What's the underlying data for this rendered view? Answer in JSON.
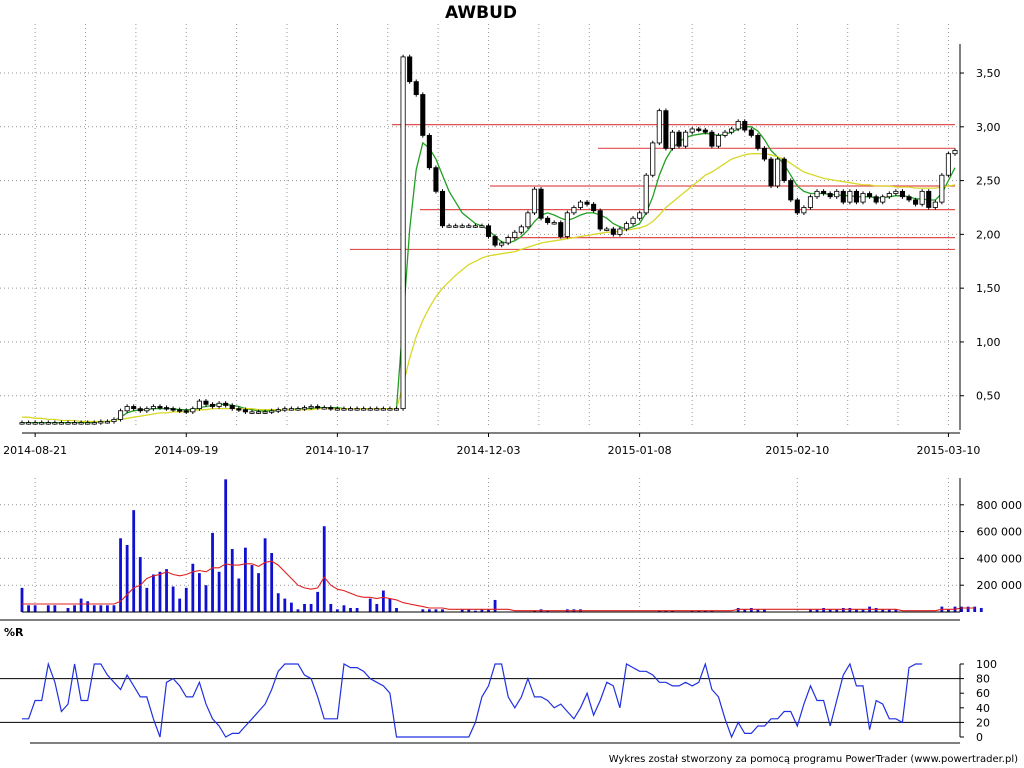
{
  "chart_data": [
    {
      "type": "candlestick",
      "title": "AWBUD",
      "x_tick_labels": [
        "2014-08-21",
        "2014-09-19",
        "2014-10-17",
        "2014-12-03",
        "2015-01-08",
        "2015-02-10",
        "2015-03-10"
      ],
      "y_tick_labels": [
        "0,50",
        "1,00",
        "1,50",
        "2,00",
        "2,50",
        "3,00",
        "3,50"
      ],
      "y_ticks": [
        0.5,
        1.0,
        1.5,
        2.0,
        2.5,
        3.0,
        3.5
      ],
      "ylim": [
        0.2,
        3.9
      ],
      "grid": true,
      "closes": [
        0.25,
        0.25,
        0.25,
        0.25,
        0.25,
        0.25,
        0.25,
        0.25,
        0.25,
        0.25,
        0.25,
        0.25,
        0.26,
        0.26,
        0.28,
        0.36,
        0.4,
        0.38,
        0.36,
        0.38,
        0.4,
        0.39,
        0.38,
        0.37,
        0.36,
        0.35,
        0.38,
        0.45,
        0.42,
        0.4,
        0.43,
        0.41,
        0.38,
        0.37,
        0.35,
        0.35,
        0.35,
        0.35,
        0.36,
        0.37,
        0.38,
        0.38,
        0.38,
        0.39,
        0.4,
        0.39,
        0.39,
        0.38,
        0.38,
        0.38,
        0.38,
        0.38,
        0.38,
        0.38,
        0.38,
        0.38,
        0.38,
        0.38,
        3.65,
        3.42,
        3.3,
        2.92,
        2.62,
        2.4,
        2.08,
        2.08,
        2.08,
        2.08,
        2.08,
        2.08,
        2.08,
        1.98,
        1.9,
        1.92,
        1.97,
        2.02,
        2.07,
        2.2,
        2.42,
        2.15,
        2.11,
        2.11,
        1.98,
        2.2,
        2.25,
        2.3,
        2.28,
        2.22,
        2.05,
        2.05,
        2.0,
        2.05,
        2.1,
        2.15,
        2.2,
        2.55,
        2.85,
        3.15,
        2.8,
        2.95,
        2.82,
        2.95,
        2.98,
        2.97,
        2.95,
        2.82,
        2.92,
        2.95,
        2.98,
        3.05,
        2.97,
        2.92,
        2.8,
        2.7,
        2.45,
        2.7,
        2.5,
        2.32,
        2.2,
        2.25,
        2.35,
        2.4,
        2.38,
        2.35,
        2.4,
        2.3,
        2.4,
        2.3,
        2.38,
        2.35,
        2.3,
        2.35,
        2.38,
        2.4,
        2.35,
        2.32,
        2.28,
        2.4,
        2.25,
        2.3,
        2.55,
        2.75,
        2.78
      ],
      "series": [
        {
          "kind": "sma_short",
          "color": "#22a022",
          "values": [
            0.25,
            0.25,
            0.25,
            0.25,
            0.25,
            0.25,
            0.25,
            0.25,
            0.25,
            0.25,
            0.25,
            0.25,
            0.26,
            0.26,
            0.27,
            0.3,
            0.34,
            0.36,
            0.37,
            0.37,
            0.38,
            0.38,
            0.38,
            0.38,
            0.37,
            0.37,
            0.37,
            0.39,
            0.4,
            0.41,
            0.42,
            0.42,
            0.41,
            0.4,
            0.38,
            0.37,
            0.36,
            0.36,
            0.36,
            0.36,
            0.37,
            0.37,
            0.38,
            0.38,
            0.38,
            0.39,
            0.39,
            0.39,
            0.39,
            0.38,
            0.38,
            0.38,
            0.38,
            0.38,
            0.38,
            0.38,
            0.38,
            0.38,
            1.2,
            2.05,
            2.6,
            2.85,
            2.8,
            2.7,
            2.55,
            2.4,
            2.3,
            2.2,
            2.15,
            2.1,
            2.08,
            2.04,
            1.98,
            1.93,
            1.92,
            1.94,
            1.98,
            2.04,
            2.12,
            2.18,
            2.2,
            2.18,
            2.15,
            2.13,
            2.15,
            2.18,
            2.2,
            2.2,
            2.18,
            2.15,
            2.1,
            2.07,
            2.05,
            2.07,
            2.1,
            2.2,
            2.35,
            2.55,
            2.7,
            2.8,
            2.86,
            2.9,
            2.92,
            2.93,
            2.94,
            2.93,
            2.92,
            2.93,
            2.95,
            2.98,
            3.0,
            3.0,
            2.96,
            2.88,
            2.78,
            2.72,
            2.65,
            2.55,
            2.45,
            2.4,
            2.38,
            2.38,
            2.38,
            2.37,
            2.37,
            2.36,
            2.36,
            2.35,
            2.35,
            2.35,
            2.34,
            2.34,
            2.35,
            2.36,
            2.36,
            2.35,
            2.33,
            2.33,
            2.32,
            2.32,
            2.38,
            2.5,
            2.62
          ]
        },
        {
          "kind": "sma_long",
          "color": "#d8d828",
          "values": [
            0.3,
            0.3,
            0.29,
            0.29,
            0.28,
            0.28,
            0.27,
            0.27,
            0.27,
            0.26,
            0.26,
            0.26,
            0.26,
            0.26,
            0.27,
            0.28,
            0.29,
            0.3,
            0.31,
            0.32,
            0.33,
            0.34,
            0.34,
            0.35,
            0.35,
            0.35,
            0.36,
            0.37,
            0.37,
            0.38,
            0.38,
            0.38,
            0.38,
            0.38,
            0.38,
            0.38,
            0.37,
            0.37,
            0.37,
            0.37,
            0.37,
            0.37,
            0.37,
            0.37,
            0.37,
            0.38,
            0.38,
            0.38,
            0.38,
            0.38,
            0.38,
            0.38,
            0.38,
            0.38,
            0.38,
            0.38,
            0.38,
            0.38,
            0.6,
            0.85,
            1.05,
            1.2,
            1.32,
            1.42,
            1.5,
            1.56,
            1.62,
            1.67,
            1.72,
            1.75,
            1.78,
            1.8,
            1.81,
            1.82,
            1.83,
            1.84,
            1.86,
            1.88,
            1.9,
            1.92,
            1.93,
            1.94,
            1.95,
            1.96,
            1.97,
            1.98,
            1.99,
            2.0,
            2.01,
            2.02,
            2.02,
            2.03,
            2.04,
            2.05,
            2.06,
            2.08,
            2.12,
            2.18,
            2.25,
            2.3,
            2.35,
            2.4,
            2.45,
            2.5,
            2.55,
            2.58,
            2.62,
            2.66,
            2.7,
            2.72,
            2.74,
            2.75,
            2.75,
            2.75,
            2.74,
            2.72,
            2.7,
            2.66,
            2.62,
            2.58,
            2.56,
            2.54,
            2.52,
            2.51,
            2.5,
            2.49,
            2.48,
            2.47,
            2.46,
            2.46,
            2.45,
            2.45,
            2.45,
            2.44,
            2.44,
            2.44,
            2.43,
            2.43,
            2.43,
            2.43,
            2.44,
            2.45,
            2.46
          ]
        }
      ],
      "support_resistance_levels": [
        3.02,
        2.8,
        2.45,
        2.23,
        1.97,
        1.86
      ]
    },
    {
      "type": "bar",
      "name": "volume",
      "y_tick_labels": [
        "200 000",
        "400 000",
        "600 000",
        "800 000"
      ],
      "y_ticks": [
        200000,
        400000,
        600000,
        800000
      ],
      "ylim": [
        0,
        1000000
      ],
      "values": [
        180000,
        50000,
        50000,
        0,
        50000,
        50000,
        0,
        30000,
        50000,
        100000,
        80000,
        50000,
        50000,
        50000,
        50000,
        550000,
        500000,
        760000,
        410000,
        180000,
        280000,
        300000,
        320000,
        190000,
        100000,
        180000,
        360000,
        290000,
        200000,
        590000,
        300000,
        990000,
        470000,
        250000,
        480000,
        350000,
        290000,
        550000,
        440000,
        140000,
        100000,
        70000,
        20000,
        60000,
        60000,
        150000,
        640000,
        60000,
        20000,
        50000,
        30000,
        30000,
        0,
        100000,
        60000,
        160000,
        100000,
        30000,
        0,
        0,
        0,
        20000,
        20000,
        20000,
        20000,
        0,
        0,
        20000,
        20000,
        10000,
        20000,
        20000,
        90000,
        0,
        0,
        0,
        0,
        0,
        10000,
        20000,
        10000,
        0,
        0,
        20000,
        20000,
        20000,
        0,
        0,
        0,
        0,
        0,
        0,
        0,
        0,
        0,
        0,
        0,
        10000,
        10000,
        10000,
        0,
        0,
        10000,
        10000,
        10000,
        10000,
        0,
        0,
        0,
        30000,
        20000,
        30000,
        20000,
        20000,
        0,
        0,
        0,
        0,
        0,
        0,
        20000,
        20000,
        30000,
        20000,
        20000,
        30000,
        30000,
        20000,
        20000,
        40000,
        30000,
        20000,
        20000,
        20000,
        0,
        0,
        0,
        0,
        0,
        0,
        40000,
        20000,
        40000,
        40000,
        40000,
        40000,
        30000
      ],
      "moving_average": [
        60000,
        60000,
        60000,
        60000,
        60000,
        60000,
        60000,
        60000,
        60000,
        60000,
        60000,
        60000,
        60000,
        60000,
        60000,
        80000,
        130000,
        180000,
        200000,
        250000,
        270000,
        280000,
        300000,
        280000,
        270000,
        280000,
        300000,
        310000,
        300000,
        330000,
        330000,
        360000,
        350000,
        350000,
        360000,
        360000,
        340000,
        370000,
        380000,
        350000,
        300000,
        250000,
        200000,
        180000,
        170000,
        180000,
        260000,
        200000,
        170000,
        160000,
        140000,
        120000,
        110000,
        110000,
        100000,
        110000,
        100000,
        90000,
        70000,
        60000,
        50000,
        40000,
        30000,
        30000,
        30000,
        20000,
        20000,
        20000,
        20000,
        20000,
        20000,
        20000,
        20000,
        20000,
        20000,
        10000,
        10000,
        10000,
        10000,
        10000,
        10000,
        10000,
        10000,
        10000,
        10000,
        10000,
        10000,
        10000,
        10000,
        10000,
        10000,
        10000,
        10000,
        10000,
        10000,
        10000,
        10000,
        10000,
        10000,
        10000,
        10000,
        10000,
        10000,
        10000,
        10000,
        10000,
        10000,
        10000,
        10000,
        20000,
        20000,
        20000,
        20000,
        20000,
        20000,
        20000,
        20000,
        20000,
        20000,
        20000,
        20000,
        20000,
        20000,
        20000,
        20000,
        20000,
        20000,
        20000,
        20000,
        20000,
        20000,
        20000,
        20000,
        20000,
        10000,
        10000,
        10000,
        10000,
        10000,
        10000,
        20000,
        20000,
        20000,
        30000,
        30000,
        30000
      ],
      "series_color": "#1010d0",
      "ma_color": "#e02020"
    },
    {
      "type": "line",
      "title": "%R",
      "y_tick_labels": [
        "0",
        "20",
        "40",
        "60",
        "80",
        "100"
      ],
      "y_ticks": [
        0,
        20,
        40,
        60,
        80,
        100
      ],
      "ylim": [
        0,
        100
      ],
      "reference_lines": [
        20,
        80
      ],
      "series_color": "#2030e0",
      "values": [
        25,
        25,
        50,
        50,
        100,
        75,
        35,
        45,
        100,
        50,
        50,
        100,
        100,
        85,
        75,
        65,
        85,
        70,
        55,
        55,
        25,
        0,
        75,
        80,
        70,
        55,
        55,
        75,
        45,
        25,
        15,
        0,
        5,
        5,
        15,
        25,
        35,
        45,
        65,
        90,
        100,
        100,
        100,
        85,
        80,
        55,
        25,
        25,
        25,
        100,
        95,
        95,
        90,
        80,
        75,
        70,
        60,
        0,
        0,
        0,
        0,
        0,
        0,
        0,
        0,
        0,
        0,
        0,
        0,
        20,
        55,
        70,
        100,
        100,
        55,
        40,
        55,
        80,
        55,
        55,
        50,
        40,
        45,
        35,
        25,
        40,
        60,
        30,
        50,
        75,
        70,
        40,
        100,
        95,
        90,
        90,
        85,
        75,
        75,
        70,
        70,
        75,
        70,
        75,
        100,
        65,
        55,
        25,
        0,
        20,
        5,
        5,
        15,
        15,
        25,
        25,
        35,
        35,
        15,
        45,
        70,
        50,
        50,
        15,
        50,
        85,
        100,
        70,
        70,
        10,
        50,
        45,
        25,
        25,
        20,
        95,
        100,
        100
      ]
    }
  ],
  "footer_credit": "Wykres został stworzony za pomocą programu PowerTrader (www.powertrader.pl)"
}
